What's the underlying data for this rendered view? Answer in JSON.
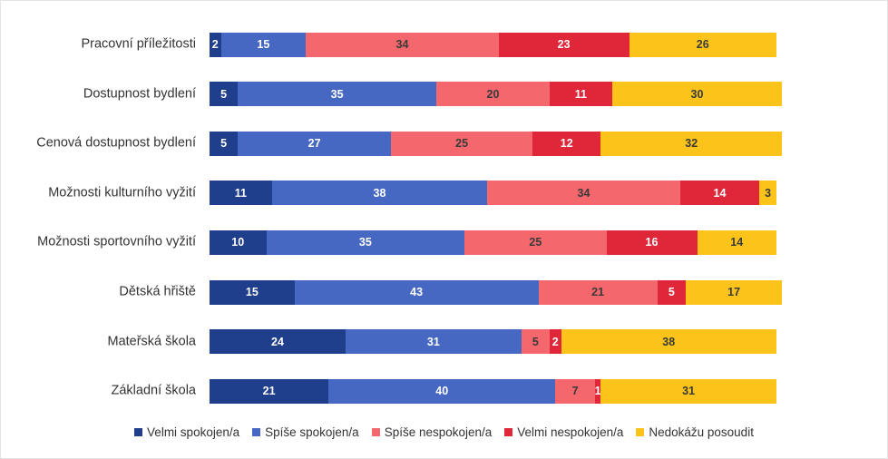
{
  "chart_data": {
    "type": "stacked-bar-horizontal",
    "categories": [
      "Pracovní příležitosti",
      "Dostupnost bydlení",
      "Cenová dostupnost bydlení",
      "Možnosti kulturního vyžití",
      "Možnosti sportovního vyžití",
      "Dětská hřiště",
      "Mateřská škola",
      "Základní škola"
    ],
    "series": [
      {
        "name": "Velmi spokojen/a",
        "color": "#1f3e8c",
        "values": [
          2,
          5,
          5,
          11,
          10,
          15,
          24,
          21
        ]
      },
      {
        "name": "Spíše spokojen/a",
        "color": "#4668c2",
        "values": [
          15,
          35,
          27,
          38,
          35,
          43,
          31,
          40
        ]
      },
      {
        "name": "Spíše nespokojen/a",
        "color": "#f4676d",
        "values": [
          34,
          20,
          25,
          34,
          25,
          21,
          5,
          7
        ]
      },
      {
        "name": "Velmi nespokojen/a",
        "color": "#df2739",
        "values": [
          23,
          11,
          12,
          14,
          16,
          5,
          2,
          1
        ]
      },
      {
        "name": "Nedokážu posoudit",
        "color": "#fcc41b",
        "values": [
          26,
          30,
          32,
          3,
          14,
          17,
          38,
          31
        ]
      }
    ],
    "legend": "bottom"
  }
}
